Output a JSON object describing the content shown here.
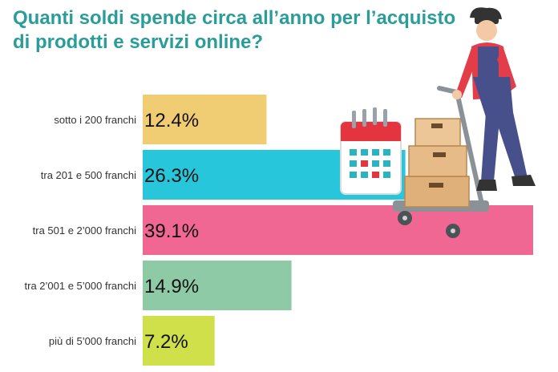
{
  "title_lines": [
    "Quanti soldi spende circa all’anno per l’acquisto",
    "di prodotti e servizi online?"
  ],
  "colors": {
    "title": "#2a9d9a",
    "bars": [
      "#f0cd73",
      "#27c6da",
      "#f06793",
      "#8fcaa6",
      "#cfe04a"
    ]
  },
  "chart_data": {
    "type": "bar",
    "orientation": "horizontal",
    "title": "Quanti soldi spende circa all’anno per l’acquisto di prodotti e servizi online?",
    "categories": [
      "sotto i 200 franchi",
      "tra 201 e 500 franchi",
      "tra 501 e 2’000 franchi",
      "tra 2’001 e 5’000 franchi",
      "più di 5’000 franchi"
    ],
    "values": [
      12.4,
      26.3,
      39.1,
      14.9,
      7.2
    ],
    "value_labels": [
      "12.4%",
      "26.3%",
      "39.1%",
      "14.9%",
      "7.2%"
    ],
    "xlim": [
      0,
      39.1
    ],
    "grid": false,
    "legend": "none"
  }
}
